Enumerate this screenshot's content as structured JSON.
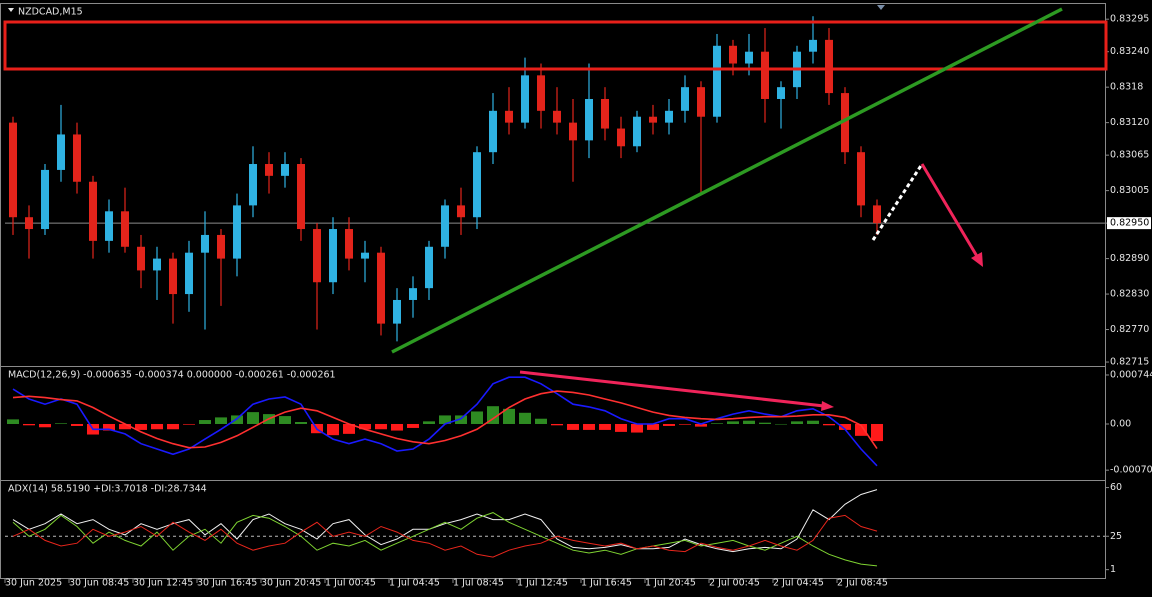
{
  "chart_data": [
    {
      "type": "candlestick",
      "title": "NZDCAD,M15",
      "categories": [
        "30 Jun 2025",
        null,
        null,
        null,
        "30 Jun 08:45",
        null,
        null,
        null,
        "30 Jun 12:45",
        null,
        null,
        null,
        "30 Jun 16:45",
        null,
        null,
        null,
        "30 Jun 20:45",
        null,
        null,
        null,
        "1 Jul 00:45",
        null,
        null,
        null,
        "1 Jul 04:45",
        null,
        null,
        null,
        "1 Jul 08:45",
        null,
        null,
        null,
        "1 Jul 12:45",
        null,
        null,
        null,
        "1 Jul 16:45",
        null,
        null,
        null,
        "1 Jul 20:45",
        null,
        null,
        null,
        "2 Jul 00:45",
        null,
        null,
        null,
        "2 Jul 04:45",
        null,
        null,
        null,
        "2 Jul 08:45",
        null,
        null
      ],
      "open": [
        0.8312,
        0.8296,
        0.8294,
        0.8304,
        0.831,
        0.8302,
        0.8292,
        0.8297,
        0.8291,
        0.8287,
        0.8289,
        0.8283,
        0.829,
        0.8293,
        0.8289,
        0.8298,
        0.8305,
        0.8303,
        0.8305,
        0.8294,
        0.8285,
        0.8294,
        0.8289,
        0.829,
        0.8278,
        0.8282,
        0.8284,
        0.8291,
        0.8298,
        0.8296,
        0.8307,
        0.8314,
        0.8312,
        0.832,
        0.8314,
        0.8312,
        0.8309,
        0.8316,
        0.8311,
        0.8308,
        0.8313,
        0.8312,
        0.8314,
        0.8318,
        0.8313,
        0.8325,
        0.8322,
        0.8324,
        0.8316,
        0.8318,
        0.8324,
        0.8326,
        0.8317,
        0.8307,
        0.8298
      ],
      "high": [
        0.8313,
        0.8298,
        0.8305,
        0.8315,
        0.8312,
        0.8303,
        0.8299,
        0.8301,
        0.8293,
        0.8291,
        0.829,
        0.8292,
        0.8297,
        0.8294,
        0.83,
        0.8308,
        0.8307,
        0.8307,
        0.8306,
        0.8295,
        0.8296,
        0.8296,
        0.8292,
        0.8291,
        0.8284,
        0.8286,
        0.8292,
        0.8299,
        0.8301,
        0.8308,
        0.8317,
        0.8318,
        0.8323,
        0.8322,
        0.8318,
        0.8316,
        0.8322,
        0.8318,
        0.8313,
        0.8314,
        0.8315,
        0.8316,
        0.832,
        0.8319,
        0.8327,
        0.8326,
        0.8327,
        0.8328,
        0.8319,
        0.8325,
        0.833,
        0.8328,
        0.8318,
        0.8308,
        0.8299
      ],
      "low": [
        0.8293,
        0.8289,
        0.8293,
        0.8302,
        0.83,
        0.8289,
        0.829,
        0.829,
        0.8284,
        0.8282,
        0.8278,
        0.828,
        0.8277,
        0.8281,
        0.8286,
        0.8296,
        0.83,
        0.8301,
        0.8292,
        0.8277,
        0.8283,
        0.8287,
        0.8285,
        0.8276,
        0.8275,
        0.8279,
        0.8282,
        0.8289,
        0.8293,
        0.8294,
        0.8305,
        0.831,
        0.8311,
        0.8311,
        0.831,
        0.8302,
        0.8306,
        0.8309,
        0.8306,
        0.8307,
        0.831,
        0.831,
        0.8312,
        0.83,
        0.8312,
        0.832,
        0.832,
        0.8312,
        0.8311,
        0.8316,
        0.8322,
        0.8315,
        0.8305,
        0.8296,
        0.8293
      ],
      "close": [
        0.8296,
        0.8294,
        0.8304,
        0.831,
        0.8302,
        0.8292,
        0.8297,
        0.8291,
        0.8287,
        0.8289,
        0.8283,
        0.829,
        0.8293,
        0.8289,
        0.8298,
        0.8305,
        0.8303,
        0.8305,
        0.8294,
        0.8285,
        0.8294,
        0.8289,
        0.829,
        0.8278,
        0.8282,
        0.8284,
        0.8291,
        0.8298,
        0.8296,
        0.8307,
        0.8314,
        0.8312,
        0.832,
        0.8314,
        0.8312,
        0.8309,
        0.8316,
        0.8311,
        0.8308,
        0.8313,
        0.8312,
        0.8314,
        0.8318,
        0.8313,
        0.8325,
        0.8322,
        0.8324,
        0.8316,
        0.8318,
        0.8324,
        0.8326,
        0.8317,
        0.8307,
        0.8298,
        0.8295
      ],
      "up_color": "#2fb2e2",
      "down_color": "#e3241b",
      "ylim": [
        0.8271,
        0.83319
      ],
      "yticks": [
        0.83295,
        {
          "value": 0.8324,
          "label": "0.83240"
        },
        0.8318,
        {
          "value": 0.8312,
          "label": "0.83120"
        },
        0.83065,
        0.83005,
        {
          "value": 0.8295,
          "label": "0.82950"
        },
        {
          "value": 0.8289,
          "label": "0.82890"
        },
        {
          "value": 0.8283,
          "label": "0.82830"
        },
        {
          "value": 0.8277,
          "label": "0.82770"
        },
        0.82715
      ]
    },
    {
      "type": "macd",
      "title": "MACD(12,26,9) -0.000635 -0.000374 0.000000 -0.000261 -0.000261",
      "bars": {
        "up_color": "#2e8b22",
        "down_color": "#ff1a1a",
        "values": [
          7e-05,
          -2e-05,
          -5e-05,
          1e-05,
          -3e-05,
          -0.00016,
          -0.0001,
          -8e-05,
          -9e-05,
          -8e-05,
          -8e-05,
          -1e-05,
          6e-05,
          0.0001,
          0.00013,
          0.00018,
          0.00015,
          0.00012,
          3e-05,
          -0.00014,
          -0.00017,
          -0.00015,
          -8e-05,
          -8e-05,
          -0.0001,
          -6e-05,
          4e-05,
          0.00013,
          0.00013,
          0.00019,
          0.00027,
          0.00023,
          0.00017,
          8e-05,
          -2e-05,
          -9e-05,
          -9e-05,
          -9e-05,
          -0.00012,
          -0.00013,
          -9e-05,
          -3e-05,
          -1e-05,
          -4e-05,
          1e-05,
          4e-05,
          5e-05,
          2e-05,
          0,
          4e-05,
          5e-05,
          -2e-05,
          -9e-05,
          -0.00018,
          -0.00026
        ]
      },
      "series": [
        {
          "color": "#1a1aff",
          "values": [
            0.00053,
            0.00038,
            0.0003,
            0.00038,
            0.0003,
            -8e-05,
            -8e-05,
            -0.00015,
            -0.0003,
            -0.00038,
            -0.00046,
            -0.00038,
            -0.00023,
            -8e-05,
            8e-05,
            0.0003,
            0.00038,
            0.00041,
            0.0003,
            -8e-05,
            -0.00023,
            -0.0003,
            -0.00023,
            -0.0003,
            -0.00041,
            -0.00038,
            -0.00023,
            0,
            8e-05,
            0.0003,
            0.00061,
            0.00071,
            0.00071,
            0.00061,
            0.00046,
            0.0003,
            0.00026,
            0.0002,
            8e-05,
            0,
            0,
            8e-05,
            8e-05,
            0,
            8e-05,
            0.00015,
            0.0002,
            0.00015,
            0.00011,
            0.0002,
            0.00023,
            0.00011,
            -8e-05,
            -0.00038,
            -0.000635
          ]
        },
        {
          "color": "#ff3030",
          "values": [
            0.0004,
            0.00042,
            0.0004,
            0.00037,
            0.00035,
            0.00025,
            0.00012,
            0,
            -0.00012,
            -0.00022,
            -0.0003,
            -0.00036,
            -0.00035,
            -0.00028,
            -0.00018,
            -5e-05,
            8e-05,
            0.00018,
            0.00024,
            0.0002,
            0.0001,
            0,
            -8e-05,
            -0.00015,
            -0.00022,
            -0.00027,
            -0.0003,
            -0.00025,
            -0.00018,
            -8e-05,
            8e-05,
            0.00025,
            0.00038,
            0.00046,
            0.0005,
            0.00048,
            0.00044,
            0.00038,
            0.00032,
            0.00025,
            0.00018,
            0.00013,
            0.0001,
            8e-05,
            7e-05,
            8e-05,
            0.0001,
            0.00011,
            0.00011,
            0.00012,
            0.00014,
            0.00014,
            0.0001,
            -2e-05,
            -0.000374
          ]
        }
      ],
      "ylim": [
        -0.00082,
        0.00085
      ],
      "yticks": [
        0.000744,
        {
          "value": 0,
          "label": "0.00"
        },
        -0.000701
      ]
    },
    {
      "type": "line",
      "title": "ADX(14) 58.5190 +DI:3.7018 -DI:28.7344",
      "series": [
        {
          "color": "#f0f0f0",
          "values": [
            37,
            30,
            34,
            41,
            34,
            37,
            30,
            26,
            34,
            30,
            34,
            37,
            26,
            34,
            23,
            37,
            41,
            34,
            30,
            23,
            34,
            37,
            26,
            19,
            23,
            30,
            30,
            34,
            37,
            41,
            37,
            37,
            41,
            37,
            23,
            17,
            16,
            17,
            19,
            16,
            16,
            17,
            23,
            19,
            16,
            14,
            16,
            17,
            16,
            23,
            44,
            37,
            48,
            55,
            58.519
          ]
        },
        {
          "color": "#7fd332",
          "values": [
            35,
            25,
            30,
            40,
            32,
            20,
            28,
            22,
            18,
            28,
            15,
            25,
            30,
            20,
            35,
            40,
            38,
            32,
            25,
            15,
            20,
            18,
            22,
            15,
            20,
            25,
            30,
            35,
            30,
            38,
            42,
            35,
            30,
            25,
            20,
            15,
            13,
            15,
            12,
            16,
            18,
            20,
            22,
            18,
            20,
            22,
            18,
            15,
            20,
            25,
            18,
            12,
            8,
            5,
            3.7018
          ]
        },
        {
          "color": "#e8261c",
          "values": [
            25,
            30,
            22,
            18,
            20,
            30,
            25,
            28,
            32,
            25,
            35,
            28,
            22,
            30,
            20,
            15,
            18,
            20,
            28,
            35,
            25,
            28,
            25,
            32,
            28,
            22,
            20,
            15,
            18,
            12,
            10,
            15,
            18,
            20,
            25,
            22,
            20,
            18,
            20,
            16,
            18,
            15,
            14,
            20,
            17,
            15,
            18,
            22,
            18,
            15,
            22,
            38,
            40,
            32,
            28.7344
          ]
        }
      ],
      "levels": [
        25
      ],
      "ylim": [
        -5,
        64
      ],
      "yticks": [
        60,
        25,
        1
      ]
    }
  ]
}
